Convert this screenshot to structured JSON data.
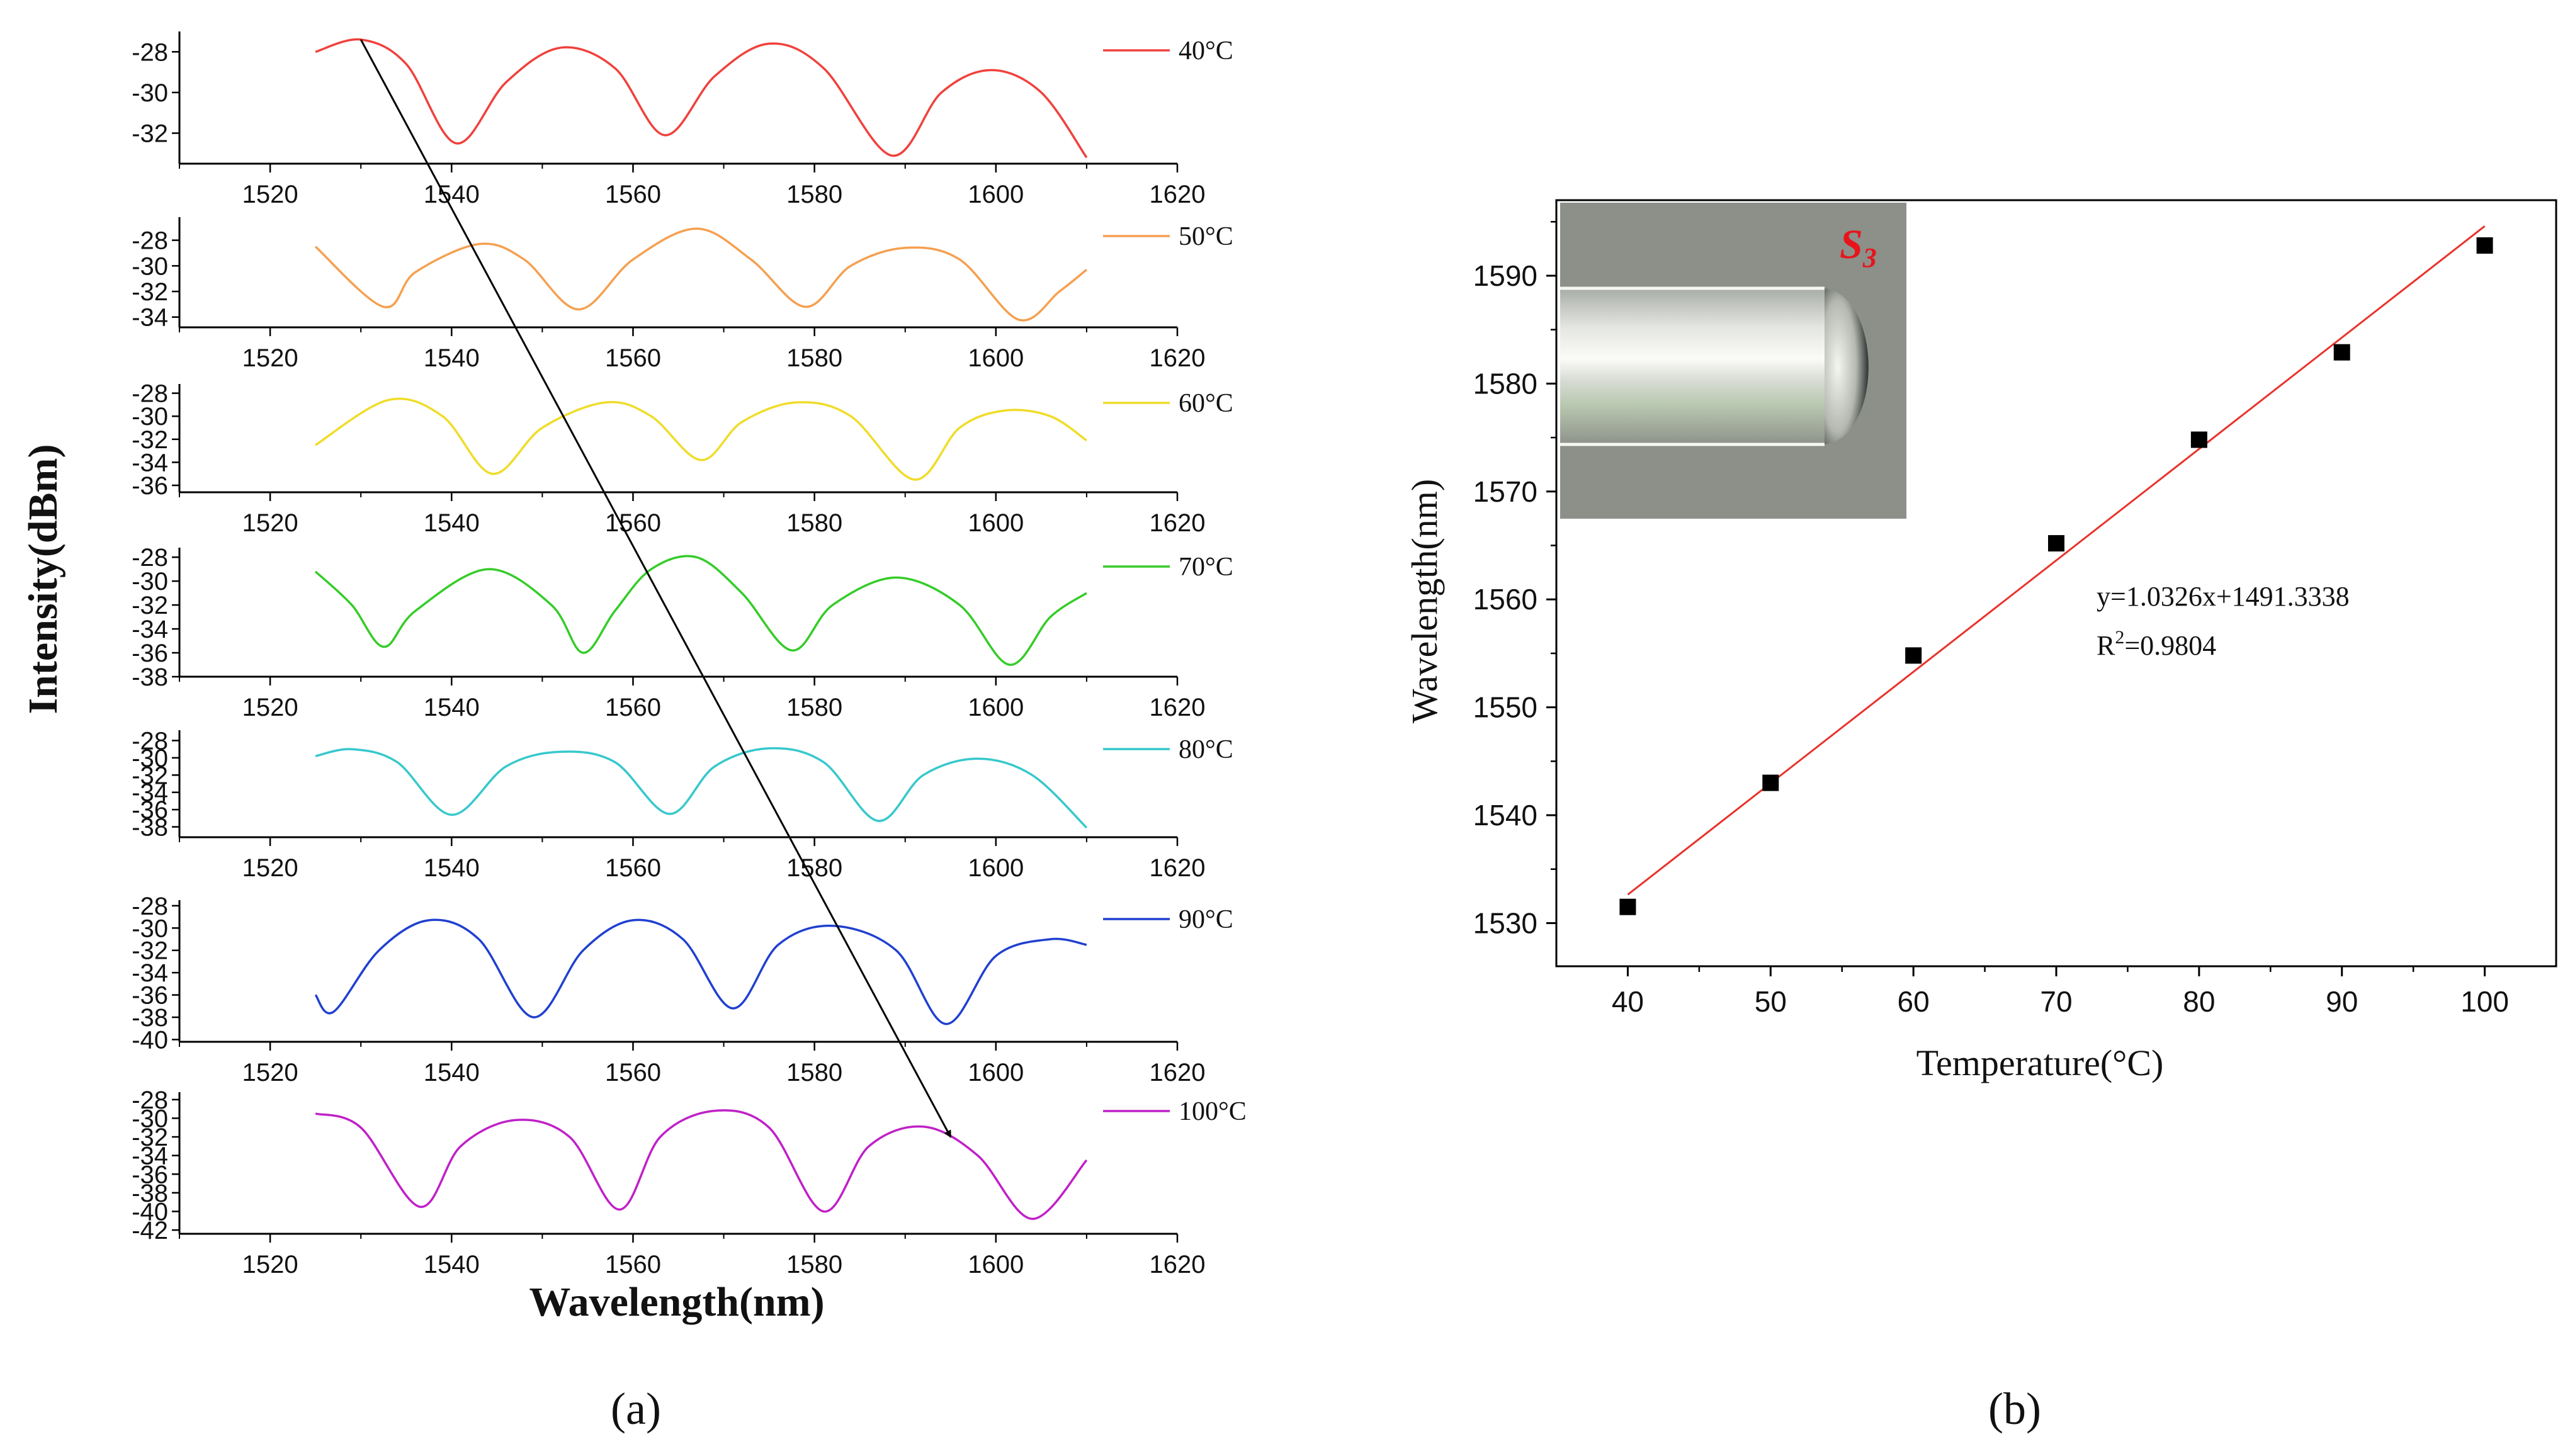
{
  "chart_data": [
    {
      "panel": "(a)",
      "type": "line",
      "xlabel": "Wavelength(nm)",
      "ylabel": "Intensity(dBm)",
      "xlim": [
        1510,
        1620
      ],
      "x_ticks": [
        1520,
        1540,
        1560,
        1580,
        1600,
        1620
      ],
      "series": [
        {
          "name": "40°C",
          "color": "#f0413c",
          "ylim": [
            -33.5,
            -27
          ],
          "y_ticks": [
            -28,
            -30,
            -32
          ],
          "x": [
            1525,
            1530,
            1535,
            1540.5,
            1546,
            1552,
            1558,
            1563.5,
            1569,
            1575,
            1581,
            1588.5,
            1594,
            1599.5,
            1605,
            1610
          ],
          "y": [
            -28,
            -27.4,
            -28.6,
            -32.5,
            -29.5,
            -27.8,
            -28.8,
            -32.1,
            -29.2,
            -27.6,
            -28.8,
            -33.1,
            -30.0,
            -28.9,
            -30.0,
            -33.2
          ]
        },
        {
          "name": "50°C",
          "color": "#f5a050",
          "ylim": [
            -34.8,
            -26.2
          ],
          "y_ticks": [
            -28,
            -30,
            -32,
            -34
          ],
          "x": [
            1525,
            1532.5,
            1536,
            1543,
            1548,
            1554,
            1560,
            1567,
            1573,
            1579,
            1584,
            1590,
            1596,
            1602.5,
            1607,
            1610
          ],
          "y": [
            -28.5,
            -33.2,
            -30.5,
            -28.3,
            -29.5,
            -33.4,
            -29.5,
            -27.1,
            -29.5,
            -33.2,
            -30.0,
            -28.6,
            -29.5,
            -34.2,
            -32.0,
            -30.3
          ]
        },
        {
          "name": "60°C",
          "color": "#f0dc28",
          "ylim": [
            -36.6,
            -27.2
          ],
          "y_ticks": [
            -28,
            -30,
            -32,
            -34,
            -36
          ],
          "x": [
            1525,
            1533,
            1539,
            1544.5,
            1550,
            1557,
            1562,
            1567.5,
            1572,
            1578,
            1584,
            1591,
            1596,
            1601,
            1606,
            1610
          ],
          "y": [
            -32.5,
            -28.6,
            -30.0,
            -35.0,
            -31.0,
            -28.8,
            -30.0,
            -33.8,
            -30.5,
            -28.8,
            -30.0,
            -35.5,
            -31.0,
            -29.5,
            -30.0,
            -32.1
          ]
        },
        {
          "name": "70°C",
          "color": "#34cc28",
          "ylim": [
            -38,
            -27.2
          ],
          "y_ticks": [
            -28,
            -30,
            -32,
            -34,
            -36,
            -38
          ],
          "x": [
            1525,
            1529,
            1532.5,
            1536,
            1544,
            1551,
            1554.5,
            1558,
            1562,
            1567,
            1572,
            1577.5,
            1582,
            1589,
            1596,
            1601.5,
            1606,
            1610
          ],
          "y": [
            -29.2,
            -32.0,
            -35.5,
            -32.5,
            -29.0,
            -32.0,
            -36.0,
            -32.5,
            -29.0,
            -28.0,
            -31.0,
            -35.8,
            -32.0,
            -29.7,
            -32.0,
            -37.0,
            -33.0,
            -31.0
          ]
        },
        {
          "name": "80°C",
          "color": "#36c8cc",
          "ylim": [
            -39.2,
            -26.8
          ],
          "y_ticks": [
            -28,
            -30,
            -32,
            -34,
            -36,
            -38
          ],
          "x": [
            1525,
            1529,
            1534,
            1540,
            1546,
            1552,
            1558,
            1564,
            1569,
            1575,
            1581,
            1587,
            1592,
            1598,
            1604,
            1610
          ],
          "y": [
            -29.8,
            -29.0,
            -30.5,
            -36.6,
            -31.0,
            -29.3,
            -30.5,
            -36.5,
            -31.0,
            -28.9,
            -30.5,
            -37.3,
            -32.0,
            -30.1,
            -32.0,
            -38.1
          ]
        },
        {
          "name": "90°C",
          "color": "#2040d0",
          "ylim": [
            -40.2,
            -27.5
          ],
          "y_ticks": [
            -28,
            -30,
            -32,
            -34,
            -36,
            -38,
            -40
          ],
          "x": [
            1525,
            1527,
            1532,
            1537.5,
            1543,
            1549,
            1554.5,
            1560,
            1565.5,
            1571,
            1576,
            1582,
            1589,
            1594.5,
            1600,
            1606,
            1610
          ],
          "y": [
            -36.0,
            -37.5,
            -32.0,
            -29.3,
            -31.0,
            -38.0,
            -32.0,
            -29.3,
            -31.0,
            -37.2,
            -31.5,
            -29.8,
            -32.0,
            -38.6,
            -32.5,
            -31.0,
            -31.5
          ]
        },
        {
          "name": "100°C",
          "color": "#c020c8",
          "ylim": [
            -42.4,
            -27.2
          ],
          "y_ticks": [
            -28,
            -30,
            -32,
            -34,
            -36,
            -38,
            -40,
            -42
          ],
          "x": [
            1525,
            1530,
            1536.5,
            1541,
            1547,
            1553,
            1558.5,
            1563,
            1569,
            1575,
            1581,
            1586,
            1592,
            1598,
            1604,
            1610
          ],
          "y": [
            -29.5,
            -31.0,
            -39.5,
            -33.0,
            -30.2,
            -32.0,
            -39.8,
            -32.0,
            -29.2,
            -31.0,
            -40.0,
            -33.0,
            -30.9,
            -34.0,
            -40.8,
            -34.5
          ]
        }
      ],
      "annotation_arrow": {
        "from": [
          1530,
          -27.4
        ],
        "to": [
          1595,
          -32
        ],
        "from_series": "40°C",
        "to_series": "100°C"
      }
    },
    {
      "panel": "(b)",
      "type": "scatter",
      "xlabel": "Temperature(°C)",
      "ylabel": "Wavelength(nm)",
      "xlim": [
        35,
        105
      ],
      "ylim": [
        1526,
        1597
      ],
      "x_ticks": [
        40,
        50,
        60,
        70,
        80,
        90,
        100
      ],
      "y_ticks": [
        1530,
        1540,
        1550,
        1560,
        1570,
        1580,
        1590
      ],
      "points": {
        "x": [
          40,
          50,
          60,
          70,
          80,
          90,
          100
        ],
        "y": [
          1531.5,
          1543.0,
          1554.8,
          1565.2,
          1574.8,
          1582.9,
          1592.8
        ]
      },
      "fit": {
        "slope": 1.0326,
        "intercept": 1491.3338,
        "color": "#e8332c"
      },
      "equation": "y=1.0326x+1491.3338",
      "r2_prefix": "R",
      "r2_sup": "2",
      "r2_value": "=0.9804",
      "inset_label_main": "S",
      "inset_label_sub": "3"
    }
  ],
  "panel_labels": {
    "a": "(a)",
    "b": "(b)"
  }
}
